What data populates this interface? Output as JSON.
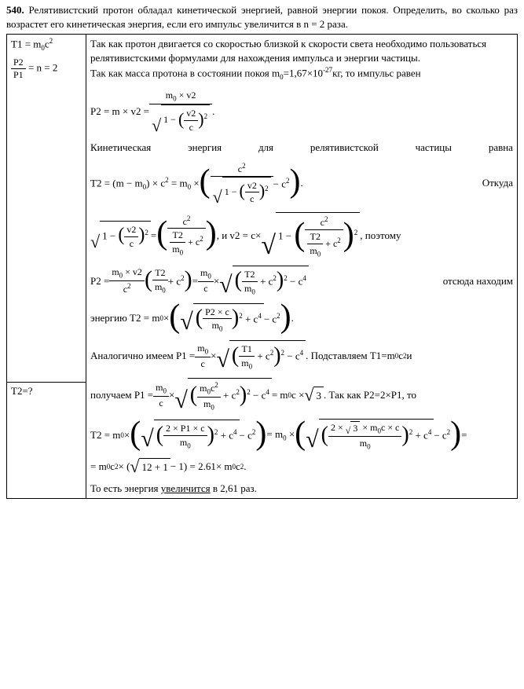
{
  "problem_number": "540.",
  "problem_text": "Релятивистский протон обладал кинетической энергией, равной энергии покоя. Определить, во сколько раз возрастет его кинетическая энергия, если его импульс увеличится в n = 2 раза.",
  "given": {
    "line1": "T1 = m",
    "line1_sub": "0",
    "line1_end": "c",
    "line1_sup": "2",
    "frac_num": "P2",
    "frac_den": "P1",
    "frac_eq": " = n = 2",
    "find": "T2=?"
  },
  "solution": {
    "p1": "Так как протон двигается со скоростью близкой к скорости света необходимо пользоваться релятивистскими формулами для нахождения импульса и энергии частицы.",
    "p2a": "Так как масса протона в состоянии покоя m",
    "p2b": "=1,67×10",
    "p2c": "кг, то импульс равен",
    "p3": "Кинетическая энергия для релятивистской частицы равна",
    "p4_end": "Откуда",
    "p5_mid": ", и v2 = c×",
    "p5_end": ", поэтому",
    "p6_end": "отсюда находим",
    "p7_a": "энергию T2 = m",
    "p8_a": "Аналогично имеем P1 = ",
    "p8_b": ". Подставляем T1=m",
    "p8_c": "c",
    "p8_d": " и",
    "p9_a": "получаем P1 = ",
    "p9_b": " = m",
    "p9_c": "c × ",
    "p9_d": ". Так как P2=2×P1, то",
    "p10_a": "T2 = m",
    "p10_b": "× ",
    "p11_a": "= m",
    "p11_b": "c",
    "p11_c": " × (",
    "p11_d": " − 1) = 2.61× m",
    "p11_e": "c",
    "p12": "То есть энергия ",
    "p12_u": "увеличится",
    "p12_end": " в 2,61 раз."
  },
  "style": {
    "font_family": "Times New Roman",
    "font_size_pt": 13,
    "text_color": "#000000",
    "background_color": "#ffffff",
    "border_color": "#000000"
  }
}
